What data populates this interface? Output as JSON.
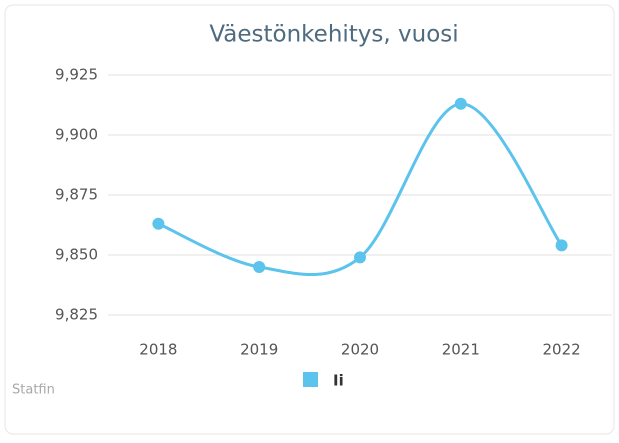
{
  "chart_data": {
    "type": "line",
    "title": "Väestönkehitys, vuosi",
    "categories": [
      "2018",
      "2019",
      "2020",
      "2021",
      "2022"
    ],
    "series": [
      {
        "name": "Ii",
        "color": "#5bc3ec",
        "values": [
          9863,
          9845,
          9849,
          9913,
          9854
        ]
      }
    ],
    "ylim": [
      9825,
      9925
    ],
    "yticks": [
      {
        "value": 9825,
        "label": "9,825"
      },
      {
        "value": 9850,
        "label": "9,850"
      },
      {
        "value": 9875,
        "label": "9,875"
      },
      {
        "value": 9900,
        "label": "9,900"
      },
      {
        "value": 9925,
        "label": "9,925"
      }
    ],
    "grid": true,
    "smooth": true,
    "legend": "bottom",
    "credits": "Statfin"
  }
}
